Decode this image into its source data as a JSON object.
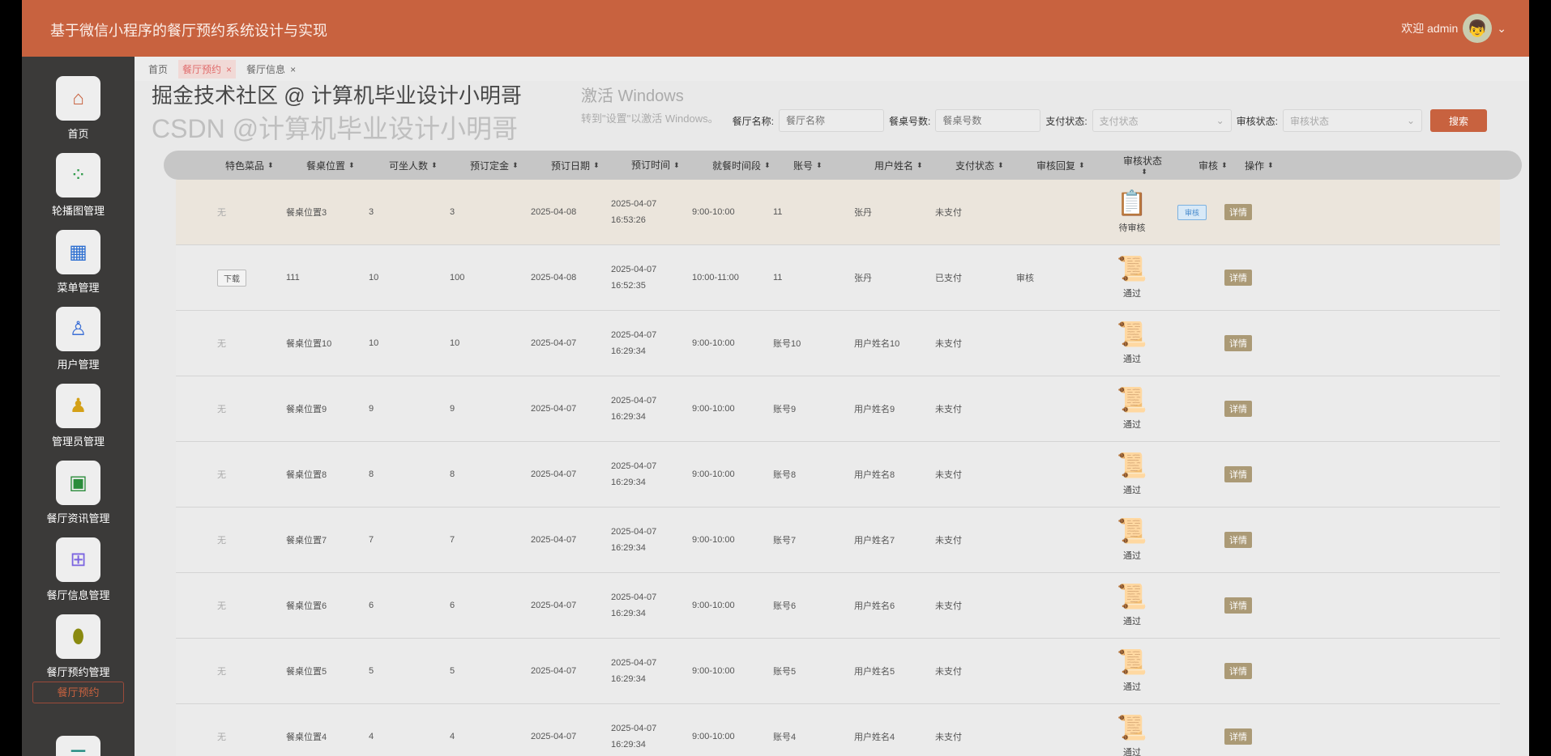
{
  "header": {
    "title": "基于微信小程序的餐厅预约系统设计与实现",
    "welcome": "欢迎 admin"
  },
  "sidebar": {
    "items": [
      {
        "label": "首页",
        "icon": "home-icon",
        "color": "#c8623f",
        "glyph": "⌂"
      },
      {
        "label": "轮播图管理",
        "icon": "dots-grid-icon",
        "color": "#2e9a4a",
        "glyph": "⁘"
      },
      {
        "label": "菜单管理",
        "icon": "folder-icon",
        "color": "#2d6fd1",
        "glyph": "▦"
      },
      {
        "label": "用户管理",
        "icon": "user-icon",
        "color": "#3b6fd6",
        "glyph": "♙"
      },
      {
        "label": "管理员管理",
        "icon": "admin-icon",
        "color": "#d4a017",
        "glyph": "♟"
      },
      {
        "label": "餐厅资讯管理",
        "icon": "briefcase-icon",
        "color": "#2a8c3a",
        "glyph": "▣"
      },
      {
        "label": "餐厅信息管理",
        "icon": "windows-grid-icon",
        "color": "#7a63e0",
        "glyph": "⊞"
      },
      {
        "label": "餐厅预约管理",
        "icon": "mouse-icon",
        "color": "#8a8a10",
        "glyph": "⬮"
      },
      {
        "label": "",
        "icon": "list-icon",
        "color": "#1f8a80",
        "glyph": "☰"
      }
    ],
    "active_sub": "餐厅预约"
  },
  "tabs": [
    {
      "label": "首页"
    },
    {
      "label": "餐厅预约",
      "close": "×"
    },
    {
      "label": "餐厅信息",
      "close": "×"
    }
  ],
  "search": {
    "fields": [
      {
        "label": "餐厅名称:",
        "placeholder": "餐厅名称"
      },
      {
        "label": "餐桌号数:",
        "placeholder": "餐桌号数"
      }
    ],
    "selects": [
      {
        "label": "支付状态:",
        "placeholder": "支付状态"
      },
      {
        "label": "审核状态:",
        "placeholder": "审核状态"
      }
    ],
    "button": "搜索"
  },
  "table": {
    "columns": [
      "特色菜品",
      "餐桌位置",
      "可坐人数",
      "预订定金",
      "预订日期",
      "预订时间",
      "就餐时间段",
      "账号",
      "用户姓名",
      "支付状态",
      "审核回复",
      "审核状态",
      "审核",
      "操作"
    ],
    "rows": [
      {
        "dish": "无",
        "pos": "餐桌位置3",
        "seats": "3",
        "deposit": "3",
        "date": "2025-04-08",
        "time": "2025-04-07 16:53:26",
        "slot": "9:00-10:00",
        "account": "11",
        "name": "张丹",
        "pay": "未支付",
        "reply": "",
        "status": "待审核",
        "audit": "审核",
        "op": "详情"
      },
      {
        "dish": "下载",
        "pos": "111",
        "seats": "10",
        "deposit": "100",
        "date": "2025-04-08",
        "time": "2025-04-07 16:52:35",
        "slot": "10:00-11:00",
        "account": "11",
        "name": "张丹",
        "pay": "已支付",
        "reply": "审核",
        "status": "通过",
        "op": "详情"
      },
      {
        "dish": "无",
        "pos": "餐桌位置10",
        "seats": "10",
        "deposit": "10",
        "date": "2025-04-07",
        "time": "2025-04-07 16:29:34",
        "slot": "9:00-10:00",
        "account": "账号10",
        "name": "用户姓名10",
        "pay": "未支付",
        "reply": "",
        "status": "通过",
        "op": "详情"
      },
      {
        "dish": "无",
        "pos": "餐桌位置9",
        "seats": "9",
        "deposit": "9",
        "date": "2025-04-07",
        "time": "2025-04-07 16:29:34",
        "slot": "9:00-10:00",
        "account": "账号9",
        "name": "用户姓名9",
        "pay": "未支付",
        "reply": "",
        "status": "通过",
        "op": "详情"
      },
      {
        "dish": "无",
        "pos": "餐桌位置8",
        "seats": "8",
        "deposit": "8",
        "date": "2025-04-07",
        "time": "2025-04-07 16:29:34",
        "slot": "9:00-10:00",
        "account": "账号8",
        "name": "用户姓名8",
        "pay": "未支付",
        "reply": "",
        "status": "通过",
        "op": "详情"
      },
      {
        "dish": "无",
        "pos": "餐桌位置7",
        "seats": "7",
        "deposit": "7",
        "date": "2025-04-07",
        "time": "2025-04-07 16:29:34",
        "slot": "9:00-10:00",
        "account": "账号7",
        "name": "用户姓名7",
        "pay": "未支付",
        "reply": "",
        "status": "通过",
        "op": "详情"
      },
      {
        "dish": "无",
        "pos": "餐桌位置6",
        "seats": "6",
        "deposit": "6",
        "date": "2025-04-07",
        "time": "2025-04-07 16:29:34",
        "slot": "9:00-10:00",
        "account": "账号6",
        "name": "用户姓名6",
        "pay": "未支付",
        "reply": "",
        "status": "通过",
        "op": "详情"
      },
      {
        "dish": "无",
        "pos": "餐桌位置5",
        "seats": "5",
        "deposit": "5",
        "date": "2025-04-07",
        "time": "2025-04-07 16:29:34",
        "slot": "9:00-10:00",
        "account": "账号5",
        "name": "用户姓名5",
        "pay": "未支付",
        "reply": "",
        "status": "通过",
        "op": "详情"
      },
      {
        "dish": "无",
        "pos": "餐桌位置4",
        "seats": "4",
        "deposit": "4",
        "date": "2025-04-07",
        "time": "2025-04-07 16:29:34",
        "slot": "9:00-10:00",
        "account": "账号4",
        "name": "用户姓名4",
        "pay": "未支付",
        "reply": "",
        "status": "通过",
        "op": "详情"
      }
    ]
  },
  "watermarks": {
    "windows1": "激活 Windows",
    "windows2": "转到\"设置\"以激活 Windows。",
    "csdn": "CSDN @计算机毕业设计小明哥",
    "juejin": "掘金技术社区 @ 计算机毕业设计小明哥"
  }
}
